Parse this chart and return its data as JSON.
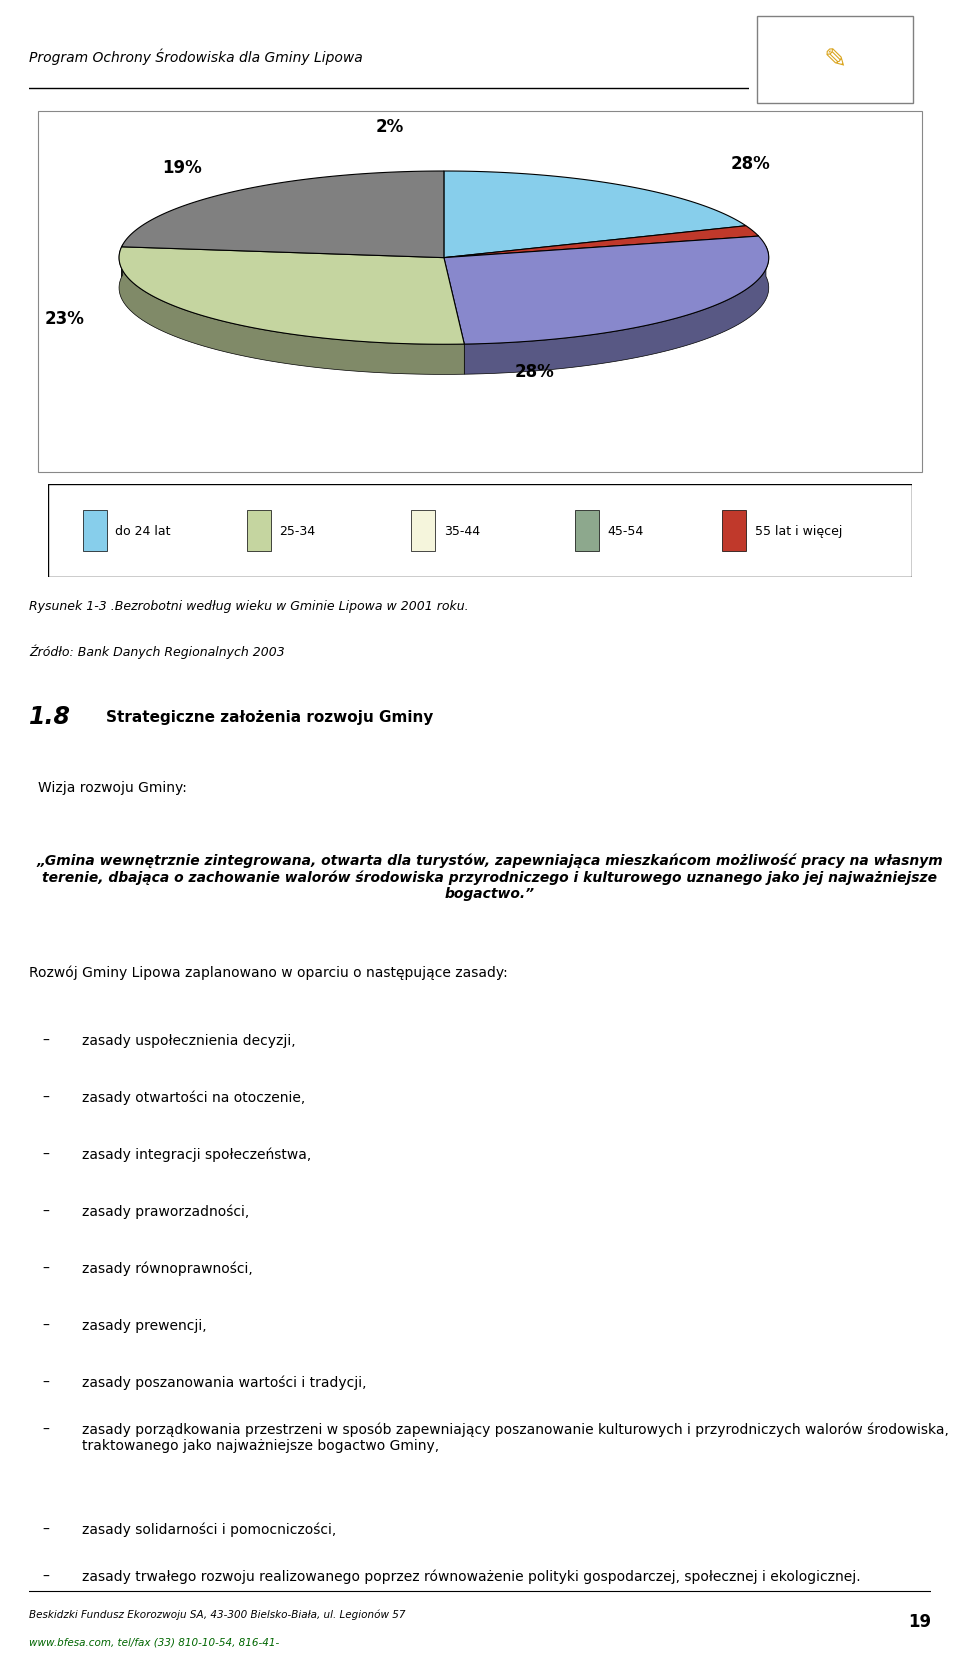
{
  "header_text": "Program Ochrony Środowiska dla Gminy Lipowa",
  "pie_values": [
    19,
    2,
    28,
    28,
    23
  ],
  "pie_labels": [
    "19%",
    "2%",
    "28%",
    "28%",
    "23%"
  ],
  "pie_colors": [
    "#87CEEB",
    "#C0392B",
    "#8888CC",
    "#C5D5A0",
    "#808080"
  ],
  "legend_labels": [
    "do 24 lat",
    "25-34",
    "35-44",
    "45-54",
    "55 lat i więcej"
  ],
  "legend_colors": [
    "#87CEEB",
    "#C5D5A0",
    "#F5F5DC",
    "#8DA88D",
    "#C0392B"
  ],
  "caption_line1": "Rysunek 1-3 .Bezrobotni według wieku w Gminie Lipowa w 2001 roku.",
  "caption_line2": "Źródło: Bank Danych Regionalnych 2003",
  "section_number": "1.8",
  "section_title": "Strategiczne założenia rozwoju Gminy",
  "vision_intro": "Wizja rozwoju Gminy:",
  "vision_quote": "„Gmina wewnętrznie zintegrowana, otwarta dla turystów, zapewniająca mieszkańcom możliwość pracy na własnym terenie, dbająca o zachowanie walorów środowiska przyrodniczego i kulturowego uznanego jako jej najważniejsze bogactwo.”",
  "development_intro": "Rozwój Gminy Lipowa zaplanowano w oparciu o następujące zasady:",
  "bullet_items": [
    "zasady uspołecznienia decyzji,",
    "zasady otwartości na otoczenie,",
    "zasady integracji społeczeństwa,",
    "zasady praworzadności,",
    "zasady równoprawności,",
    "zasady prewencji,",
    "zasady poszanowania wartości i tradycji,",
    "zasady porządkowania przestrzeni w sposób zapewniający poszanowanie kulturowych i przyrodniczych walorów środowiska, traktowanego jako najważniejsze bogactwo Gminy,",
    "zasady solidarności i pomocniczości,",
    "zasady trwałego rozwoju realizowanego poprzez równoważenie polityki gospodarczej, społecznej i ekologicznej."
  ],
  "footer_line1": "Beskidzki Fundusz Ekorozwoju SA, 43-300 Bielsko-Biała, ul. Legionów 57",
  "footer_line2": "www.bfesa.com, tel/fax (33) 810-10-54, 816-41-",
  "page_number": "19",
  "bg_color": "#FFFFFF"
}
